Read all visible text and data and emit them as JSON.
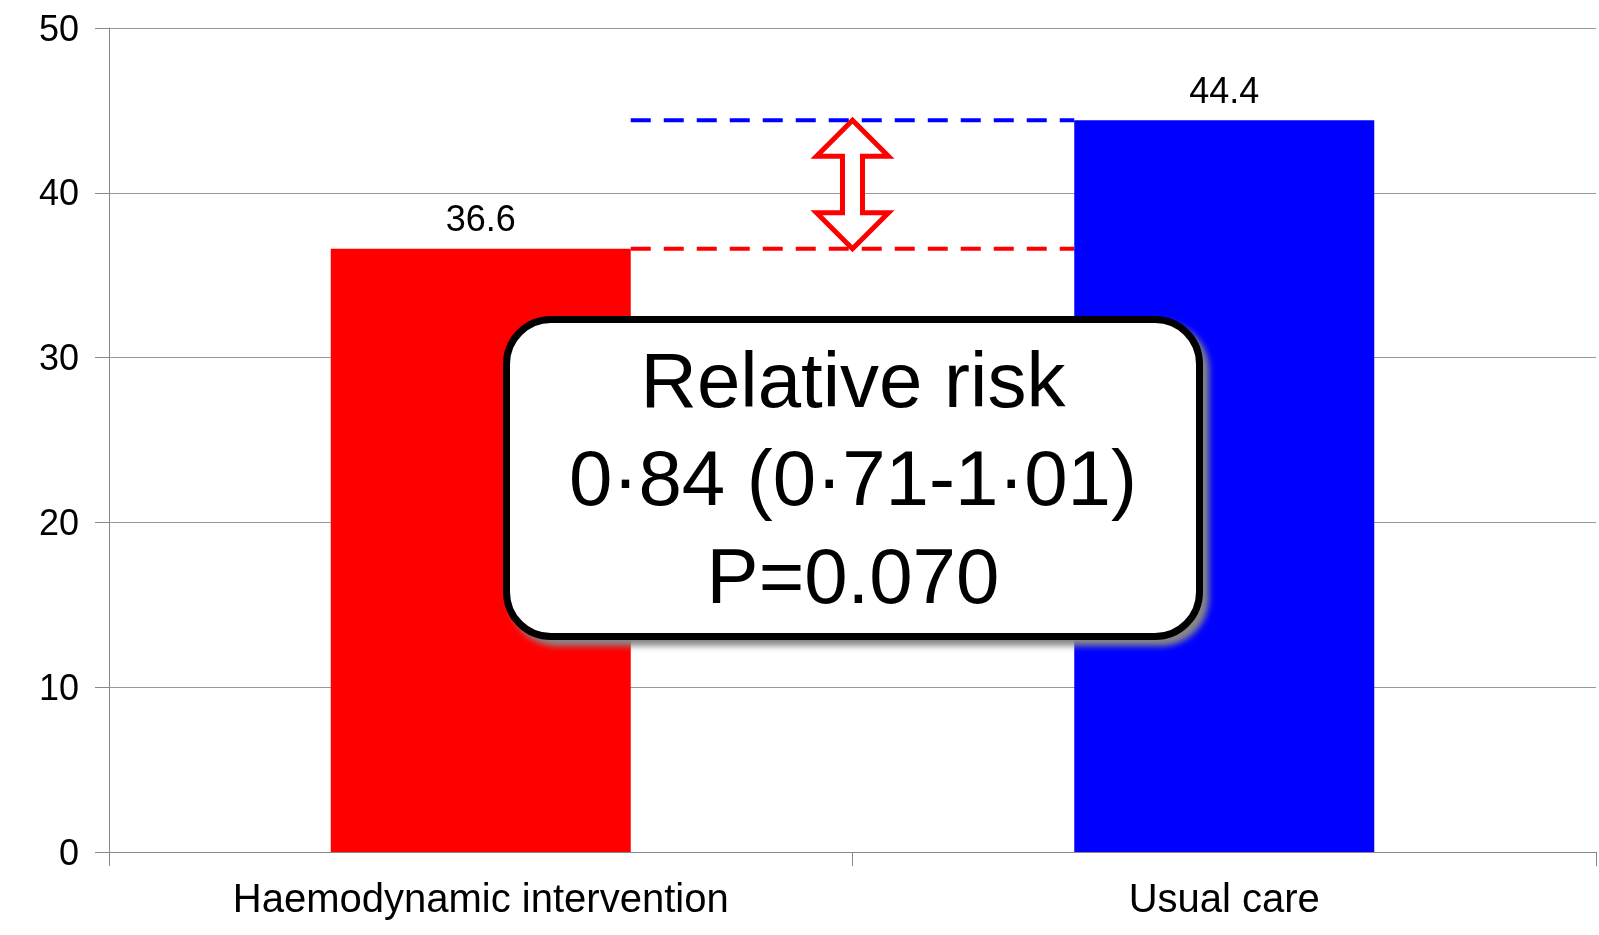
{
  "chart_data": {
    "type": "bar",
    "categories": [
      "Haemodynamic intervention",
      "Usual care"
    ],
    "values": [
      36.6,
      44.4
    ],
    "colors": [
      "#ff0000",
      "#0000ff"
    ],
    "data_labels": true,
    "ylim": [
      0,
      50
    ],
    "yticks": [
      0,
      10,
      20,
      30,
      40,
      50
    ],
    "grid": "y",
    "ref_lines": [
      {
        "axis": "y",
        "value": 44.4,
        "color": "#0000ff",
        "line_style": "dashed"
      },
      {
        "axis": "y",
        "value": 36.6,
        "color": "#ff0000",
        "line_style": "dashed"
      }
    ],
    "annotations": [
      "Relative risk",
      "0·84 (0·71-1·01)",
      "P=0.070"
    ]
  }
}
